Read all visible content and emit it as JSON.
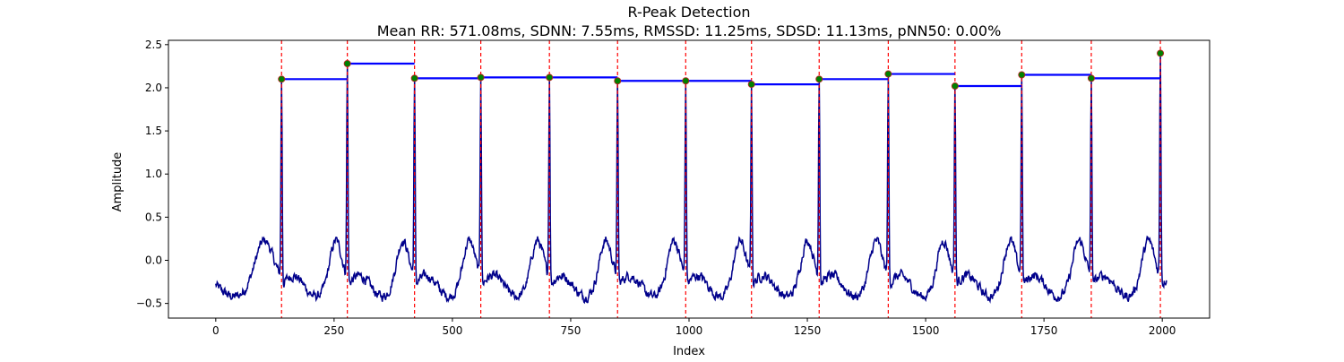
{
  "chart_data": {
    "type": "line",
    "title": "R-Peak Detection",
    "subtitle": "Mean RR: 571.08ms, SDNN: 7.55ms, RMSSD: 11.25ms, SDSD: 11.13ms, pNN50: 0.00%",
    "xlabel": "Index",
    "ylabel": "Amplitude",
    "xlim": [
      -100,
      2100
    ],
    "ylim": [
      -0.67,
      2.55
    ],
    "xticks": [
      0,
      250,
      500,
      750,
      1000,
      1250,
      1500,
      1750,
      2000
    ],
    "yticks": [
      -0.5,
      0.0,
      0.5,
      1.0,
      1.5,
      2.0,
      2.5
    ],
    "xtick_labels": [
      "0",
      "250",
      "500",
      "750",
      "1000",
      "1250",
      "1500",
      "1750",
      "2000"
    ],
    "ytick_labels": [
      "−0.5",
      "0.0",
      "0.5",
      "1.0",
      "1.5",
      "2.0",
      "2.5"
    ],
    "grid": false,
    "legend": "none",
    "n_samples": 2010,
    "signal_baseline_range": [
      -0.5,
      0.4
    ],
    "r_peaks": {
      "x": [
        139,
        278,
        420,
        560,
        705,
        849,
        993,
        1132,
        1275,
        1421,
        1562,
        1703,
        1850,
        1996
      ],
      "y": [
        2.1,
        2.28,
        2.11,
        2.12,
        2.12,
        2.08,
        2.08,
        2.04,
        2.1,
        2.16,
        2.02,
        2.15,
        2.11,
        2.4
      ]
    },
    "colors": {
      "signal": "#00008b",
      "peak_lines": "#ff0000",
      "peak_markers": "#008000",
      "rr_segments": "#0000ff"
    }
  }
}
